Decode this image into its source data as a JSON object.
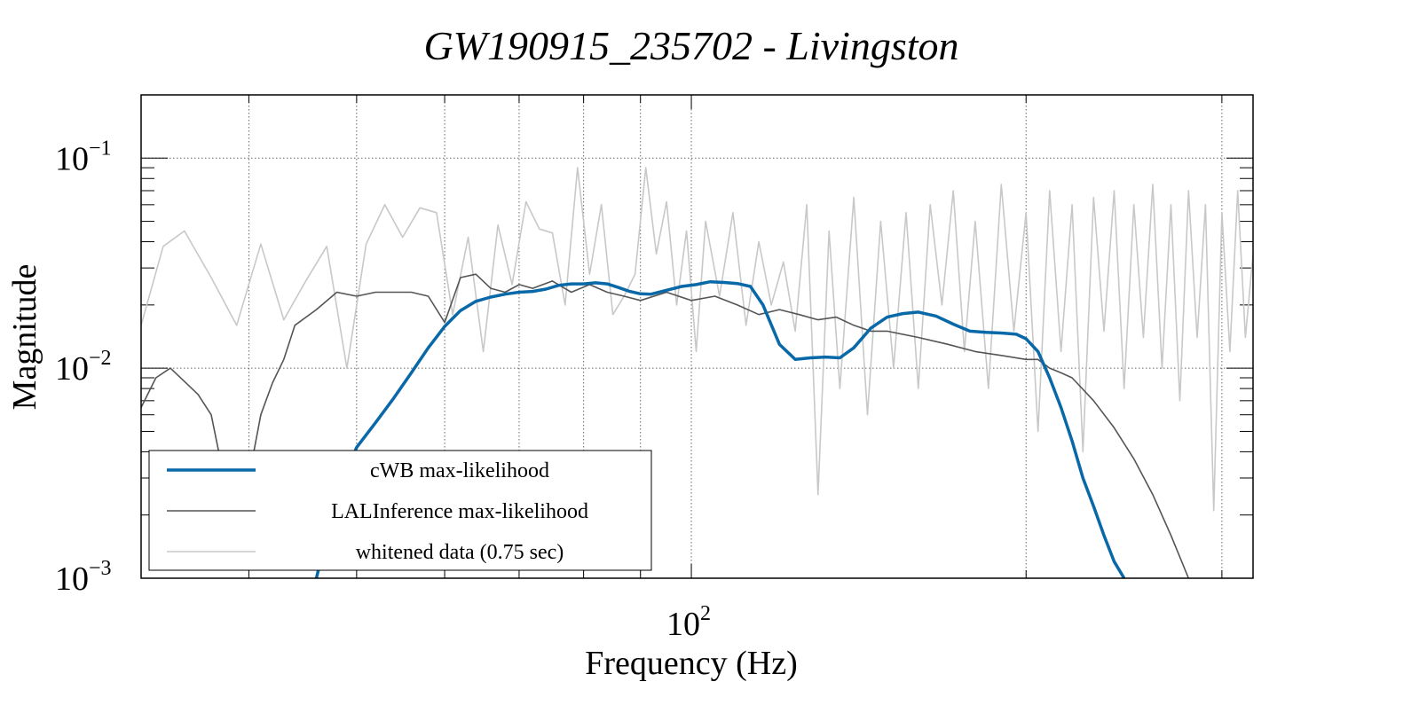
{
  "chart_data": {
    "type": "line",
    "title": "GW190915_235702 - Livingston",
    "xlabel": "Frequency (Hz)",
    "ylabel": "Magnitude",
    "x_scale": "log",
    "y_scale": "log",
    "xlim": [
      32,
      320
    ],
    "ylim": [
      0.001,
      0.2
    ],
    "grid": true,
    "legend_position": "bottom-left",
    "x_ticks": [
      {
        "base": "10",
        "exp": "2",
        "value": 100
      }
    ],
    "y_ticks": [
      {
        "base": "10",
        "exp": "−3",
        "value": 0.001
      },
      {
        "base": "10",
        "exp": "−2",
        "value": 0.01
      },
      {
        "base": "10",
        "exp": "−1",
        "value": 0.1
      }
    ],
    "series": [
      {
        "name": "whitened data (0.75 sec)",
        "color": "#c8c8c8",
        "x": [
          32,
          33.5,
          35,
          37,
          39,
          41,
          43,
          45,
          47,
          49,
          51,
          53,
          55,
          57,
          59,
          61,
          63,
          65,
          67,
          69,
          71,
          73,
          75,
          77,
          79,
          81,
          83,
          85,
          87,
          89,
          91,
          93,
          95,
          97,
          99,
          101,
          103,
          106,
          109,
          112,
          115,
          118,
          121,
          124,
          127,
          130,
          133,
          136,
          140,
          144,
          148,
          152,
          156,
          160,
          164,
          168,
          172,
          176,
          180,
          185,
          190,
          195,
          200,
          205,
          210,
          215,
          220,
          225,
          230,
          235,
          240,
          245,
          250,
          255,
          260,
          265,
          270,
          275,
          280,
          285,
          290,
          295,
          300,
          305,
          310,
          315,
          320
        ],
        "values": [
          0.016,
          0.038,
          0.045,
          0.027,
          0.016,
          0.039,
          0.017,
          0.026,
          0.038,
          0.01,
          0.039,
          0.06,
          0.042,
          0.058,
          0.055,
          0.018,
          0.042,
          0.012,
          0.048,
          0.025,
          0.062,
          0.046,
          0.044,
          0.02,
          0.09,
          0.028,
          0.06,
          0.018,
          0.022,
          0.028,
          0.09,
          0.035,
          0.062,
          0.02,
          0.045,
          0.012,
          0.05,
          0.022,
          0.055,
          0.016,
          0.04,
          0.02,
          0.032,
          0.015,
          0.06,
          0.0025,
          0.045,
          0.008,
          0.065,
          0.006,
          0.05,
          0.01,
          0.055,
          0.008,
          0.06,
          0.02,
          0.07,
          0.012,
          0.05,
          0.008,
          0.075,
          0.015,
          0.055,
          0.005,
          0.07,
          0.012,
          0.06,
          0.004,
          0.065,
          0.015,
          0.07,
          0.008,
          0.06,
          0.014,
          0.075,
          0.01,
          0.06,
          0.007,
          0.07,
          0.014,
          0.06,
          0.0021,
          0.055,
          0.012,
          0.07,
          0.014,
          0.035
        ]
      },
      {
        "name": "LALInference max-likelihood",
        "color": "#555555",
        "x": [
          32,
          33,
          34,
          36,
          37,
          38,
          39,
          40,
          41,
          42,
          43,
          44,
          46,
          48,
          50,
          52,
          54,
          56,
          58,
          60,
          62,
          64,
          66,
          68,
          70,
          72,
          75,
          78,
          81,
          84,
          87,
          90,
          95,
          100,
          105,
          110,
          115,
          120,
          125,
          130,
          135,
          140,
          145,
          150,
          160,
          170,
          180,
          190,
          200,
          205,
          210,
          215,
          220,
          230,
          240,
          250,
          260,
          270,
          280
        ],
        "values": [
          0.0065,
          0.009,
          0.01,
          0.0075,
          0.006,
          0.003,
          0.0025,
          0.003,
          0.006,
          0.0085,
          0.011,
          0.016,
          0.019,
          0.023,
          0.022,
          0.023,
          0.023,
          0.023,
          0.022,
          0.0165,
          0.027,
          0.028,
          0.024,
          0.023,
          0.025,
          0.024,
          0.026,
          0.023,
          0.025,
          0.023,
          0.022,
          0.021,
          0.023,
          0.021,
          0.022,
          0.02,
          0.018,
          0.019,
          0.018,
          0.017,
          0.0175,
          0.016,
          0.015,
          0.015,
          0.014,
          0.013,
          0.012,
          0.0115,
          0.011,
          0.011,
          0.01,
          0.0095,
          0.009,
          0.007,
          0.0052,
          0.0037,
          0.0025,
          0.0016,
          0.001
        ]
      },
      {
        "name": "cWB max-likelihood",
        "color": "#0868a8",
        "x": [
          46,
          48,
          50,
          52,
          54,
          56,
          58,
          60,
          62,
          64,
          66,
          68,
          70,
          72,
          74,
          76,
          78,
          80,
          82,
          84,
          86,
          88,
          90,
          92,
          95,
          98,
          101,
          104,
          107,
          110,
          113,
          116,
          120,
          124,
          128,
          132,
          136,
          140,
          145,
          150,
          155,
          160,
          166,
          172,
          178,
          184,
          190,
          196,
          200,
          205,
          210,
          215,
          220,
          225,
          230,
          235,
          240,
          245
        ],
        "values": [
          0.001,
          0.0025,
          0.0042,
          0.0055,
          0.0072,
          0.0095,
          0.0125,
          0.0158,
          0.0188,
          0.0208,
          0.0218,
          0.0225,
          0.023,
          0.0232,
          0.0238,
          0.0248,
          0.0252,
          0.0252,
          0.0255,
          0.0252,
          0.0242,
          0.0232,
          0.0226,
          0.0225,
          0.0235,
          0.0245,
          0.025,
          0.0258,
          0.0256,
          0.0253,
          0.0245,
          0.02,
          0.013,
          0.011,
          0.0112,
          0.0113,
          0.0112,
          0.0125,
          0.0155,
          0.0175,
          0.0182,
          0.0185,
          0.0177,
          0.0162,
          0.015,
          0.0148,
          0.0147,
          0.0145,
          0.0138,
          0.012,
          0.009,
          0.0065,
          0.0045,
          0.003,
          0.0022,
          0.0016,
          0.0012,
          0.001
        ]
      }
    ]
  }
}
